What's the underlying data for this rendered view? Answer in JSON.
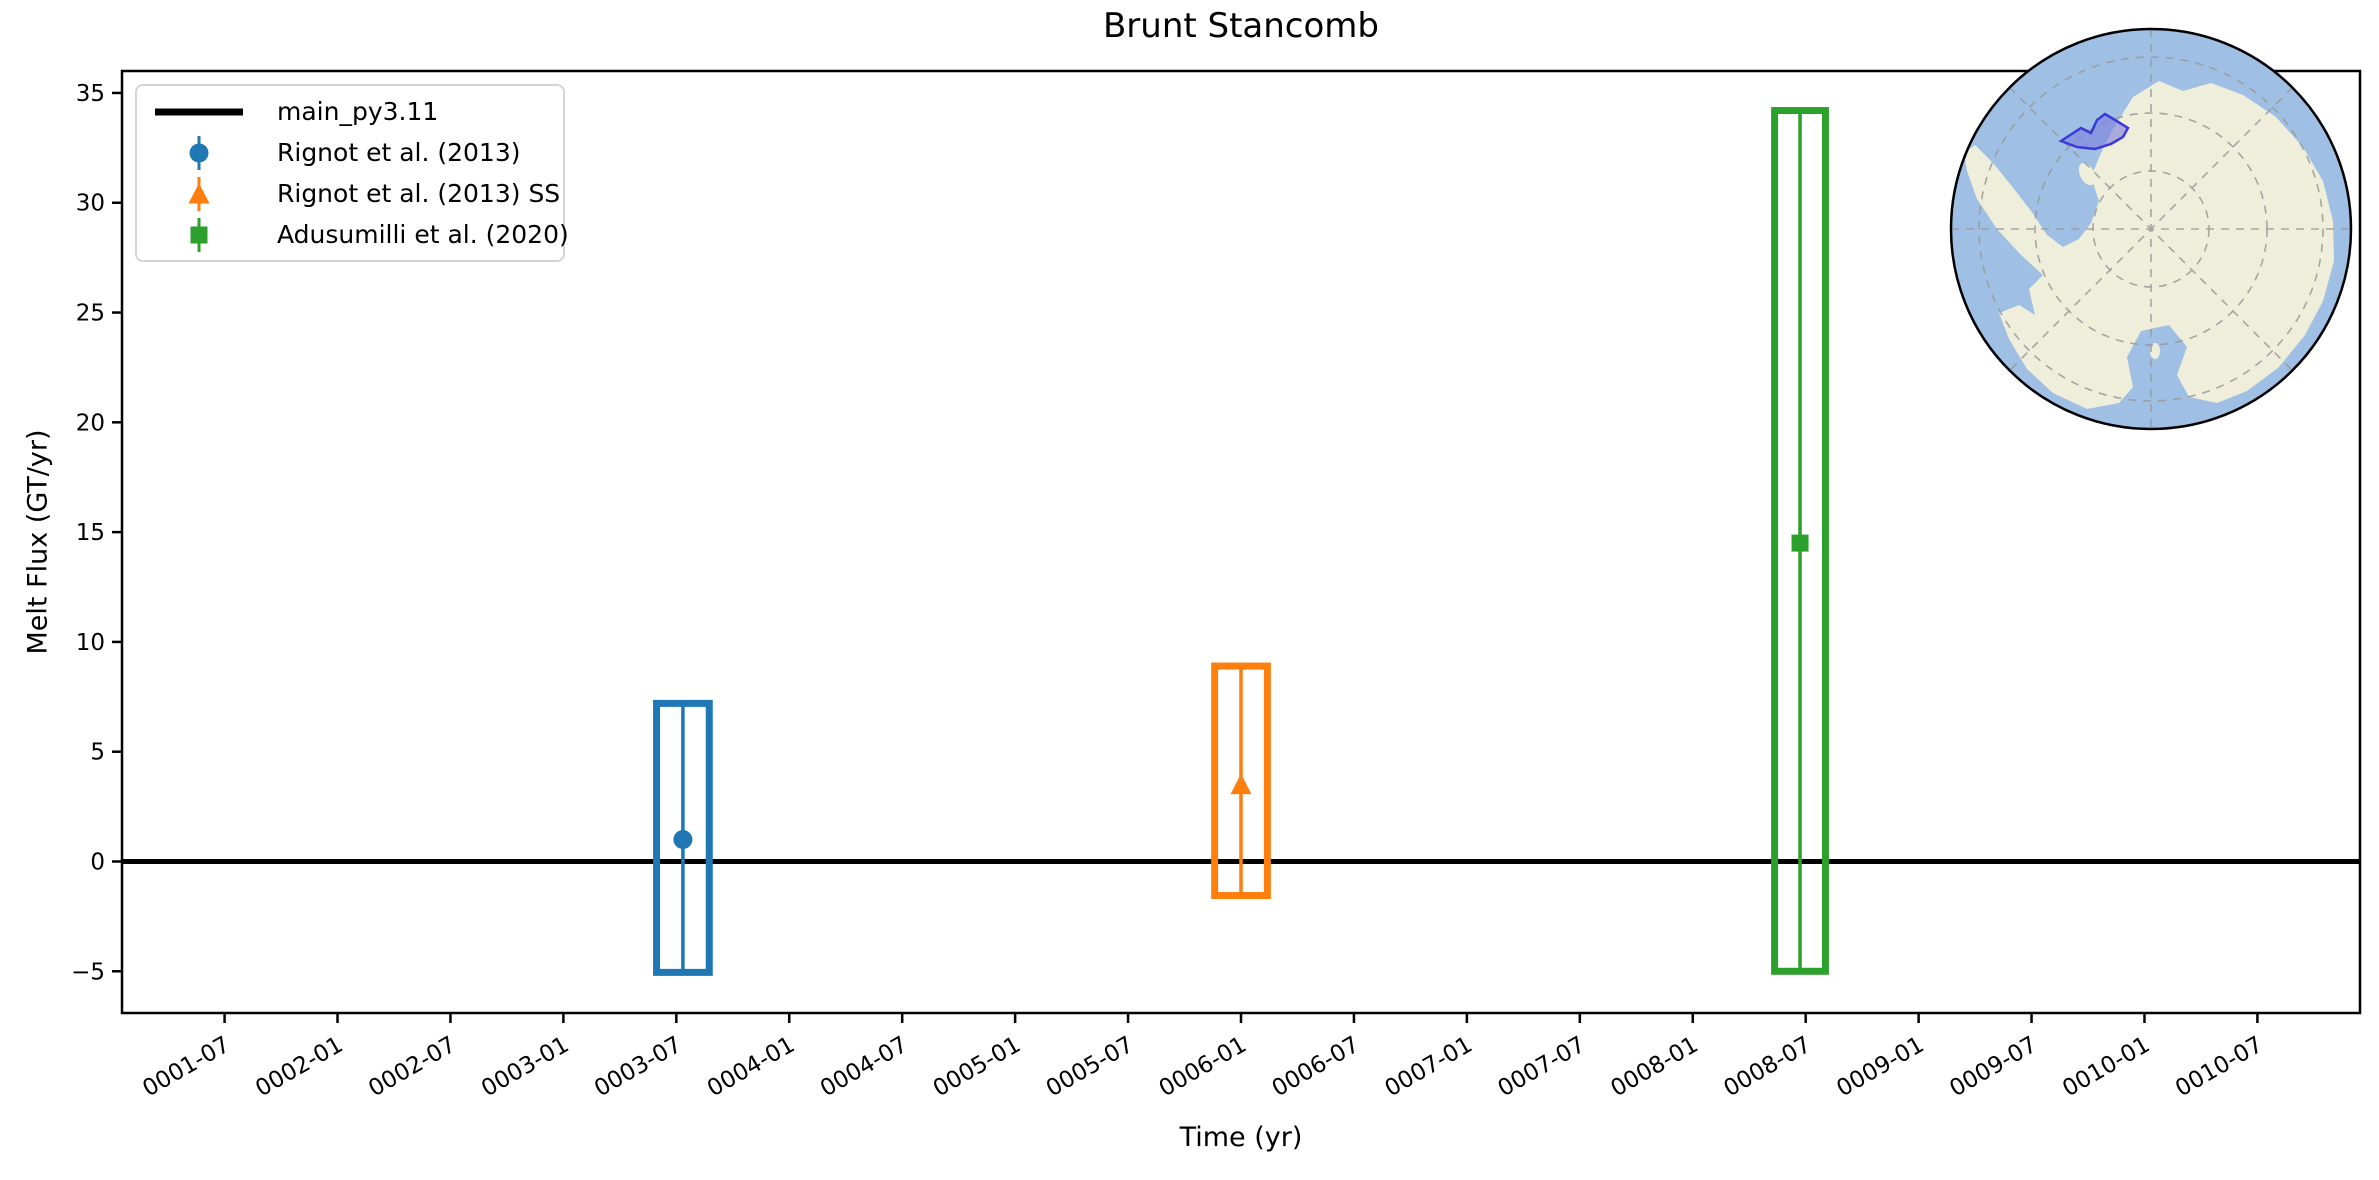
{
  "title": "Brunt Stancomb",
  "figure_bg": "#ffffff",
  "chart_data": {
    "type": "box-errorbar",
    "title": "Brunt Stancomb",
    "xlabel": "Time (yr)",
    "ylabel": "Melt Flux (GT/yr)",
    "grid": false,
    "xlim_months": [
      0.55,
      119.45
    ],
    "ylim": [
      -6.9,
      36.0
    ],
    "y_ticks": [
      -5,
      0,
      5,
      10,
      15,
      20,
      25,
      30,
      35
    ],
    "x_ticks": [
      {
        "label": "0001-07",
        "month": 6
      },
      {
        "label": "0002-01",
        "month": 12
      },
      {
        "label": "0002-07",
        "month": 18
      },
      {
        "label": "0003-01",
        "month": 24
      },
      {
        "label": "0003-07",
        "month": 30
      },
      {
        "label": "0004-01",
        "month": 36
      },
      {
        "label": "0004-07",
        "month": 42
      },
      {
        "label": "0005-01",
        "month": 48
      },
      {
        "label": "0005-07",
        "month": 54
      },
      {
        "label": "0006-01",
        "month": 60
      },
      {
        "label": "0006-07",
        "month": 66
      },
      {
        "label": "0007-01",
        "month": 72
      },
      {
        "label": "0007-07",
        "month": 78
      },
      {
        "label": "0008-01",
        "month": 84
      },
      {
        "label": "0008-07",
        "month": 90
      },
      {
        "label": "0009-01",
        "month": 96
      },
      {
        "label": "0009-07",
        "month": 102
      },
      {
        "label": "0010-01",
        "month": 108
      },
      {
        "label": "0010-07",
        "month": 114
      }
    ],
    "zero_line": {
      "value": 0,
      "label": "main_py3.11",
      "color": "#000000"
    },
    "series": [
      {
        "name": "Rignot et al. (2013)",
        "color": "#1f77b4",
        "marker": "circle",
        "x_label": "0003-07",
        "x_center_month": 30.35,
        "x_halfwidth_months": 1.4,
        "box_y": [
          -5.05,
          7.2
        ],
        "errorbar_y": [
          -5.05,
          7.2
        ],
        "value": 1.0
      },
      {
        "name": "Rignot et al. (2013) SS",
        "color": "#ff7f0e",
        "marker": "triangle-up",
        "x_label": "0006-01",
        "x_center_month": 60.0,
        "x_halfwidth_months": 1.4,
        "box_y": [
          -1.55,
          8.9
        ],
        "errorbar_y": [
          -1.55,
          8.9
        ],
        "value": 3.5
      },
      {
        "name": "Adusumilli et al. (2020)",
        "color": "#2ca02c",
        "marker": "square",
        "x_label": "0008-06",
        "x_center_month": 89.7,
        "x_halfwidth_months": 1.35,
        "box_y": [
          -5.0,
          34.2
        ],
        "errorbar_y": [
          -5.0,
          34.2
        ],
        "value": 14.5
      }
    ],
    "legend": {
      "position": "upper left",
      "entries": [
        {
          "label": "main_py3.11",
          "type": "line",
          "color": "#000000"
        },
        {
          "label": "Rignot et al. (2013)",
          "type": "circle",
          "color": "#1f77b4"
        },
        {
          "label": "Rignot et al. (2013) SS",
          "type": "triangle-up",
          "color": "#ff7f0e"
        },
        {
          "label": "Adusumilli et al. (2020)",
          "type": "square",
          "color": "#2ca02c"
        }
      ]
    }
  },
  "inset_map": {
    "name": "antarctica-locator-map",
    "highlight_region": "Brunt Stancomb",
    "ocean_color": "#9fc0e4",
    "land_color": "#efeeda",
    "graticule_color": "#999999",
    "outline_color": "#000000",
    "highlight_fill": "#7d7de0",
    "highlight_stroke": "#3a3ad9"
  }
}
